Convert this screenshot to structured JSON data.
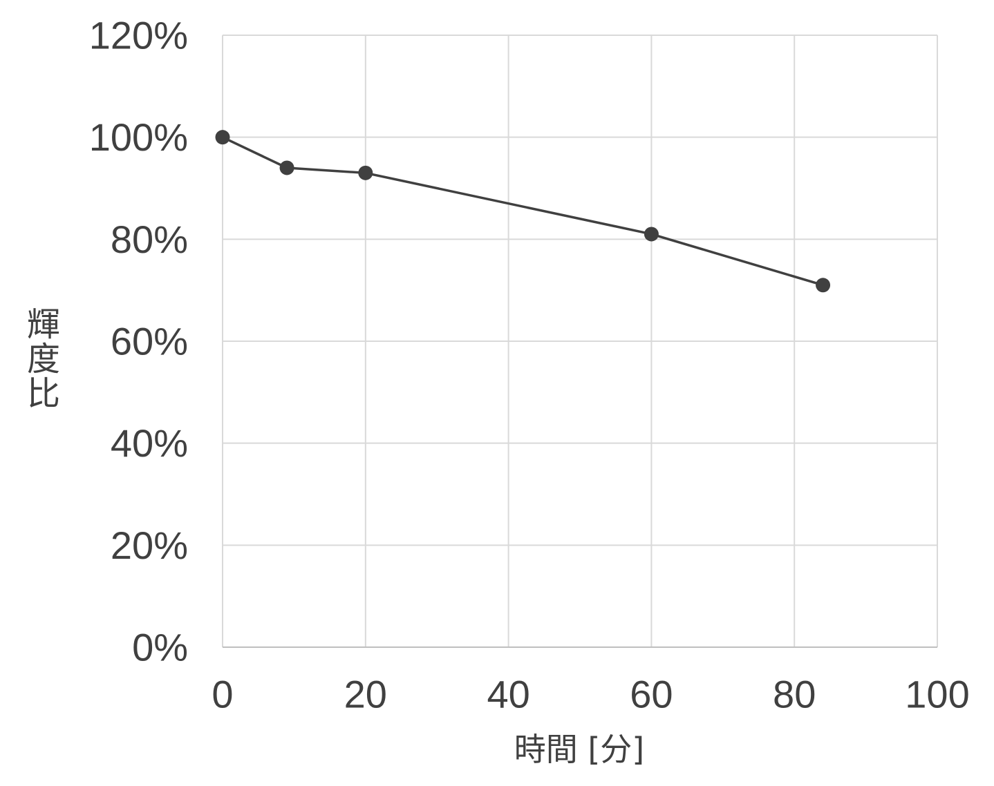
{
  "chart_data": {
    "type": "line",
    "xlabel": "時間 [分]",
    "ylabel": "輝度比",
    "x": [
      0,
      9,
      20,
      60,
      84
    ],
    "series": [
      {
        "values": [
          100,
          94,
          93,
          81,
          71
        ]
      }
    ],
    "xlim": [
      0,
      100
    ],
    "ylim": [
      0,
      120
    ],
    "xticks": [
      0,
      20,
      40,
      60,
      80,
      100
    ],
    "xtick_labels": [
      "0",
      "20",
      "40",
      "60",
      "80",
      "100"
    ],
    "yticks": [
      0,
      20,
      40,
      60,
      80,
      100,
      120
    ],
    "ytick_labels": [
      "0%",
      "20%",
      "40%",
      "60%",
      "80%",
      "100%",
      "120%"
    ],
    "grid": true,
    "markers": true,
    "colors": {
      "line": "#404040",
      "marker": "#404040",
      "grid": "#d9d9d9",
      "axis": "#bfbfbf",
      "text": "#404040"
    }
  }
}
